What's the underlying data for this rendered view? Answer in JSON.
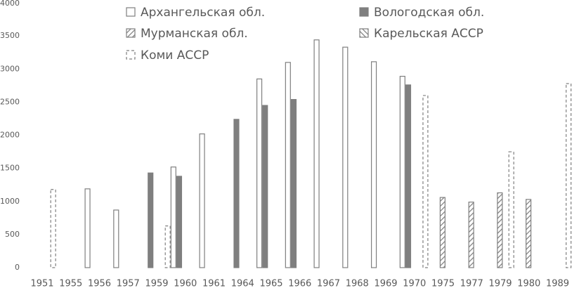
{
  "chart_data": {
    "type": "bar",
    "categories": [
      "1951",
      "1955",
      "1956",
      "1957",
      "1959",
      "1960",
      "1961",
      "1964",
      "1965",
      "1966",
      "1967",
      "1968",
      "1969",
      "1970",
      "1975",
      "1977",
      "1979",
      "1980",
      "1989"
    ],
    "series": [
      {
        "name": "Архангельская обл.",
        "color": "#7f7f7f",
        "style": "outline",
        "values": [
          null,
          null,
          1190,
          870,
          null,
          1520,
          2020,
          null,
          2850,
          3100,
          3440,
          3330,
          3110,
          2890,
          null,
          null,
          null,
          null,
          null
        ]
      },
      {
        "name": "Вологодская обл.",
        "color": "#7f7f7f",
        "style": "solid",
        "values": [
          null,
          null,
          null,
          null,
          1430,
          1380,
          null,
          2240,
          2450,
          2540,
          null,
          null,
          null,
          2760,
          null,
          null,
          null,
          null,
          null
        ]
      },
      {
        "name": "Мурманская обл.",
        "color": "#7f7f7f",
        "style": "hatch-back",
        "values": [
          null,
          null,
          null,
          null,
          null,
          null,
          null,
          null,
          null,
          null,
          null,
          null,
          null,
          null,
          1060,
          990,
          1130,
          1030,
          null
        ]
      },
      {
        "name": "Карельская АССР",
        "color": "#7f7f7f",
        "style": "hatch-forward",
        "values": [
          null,
          null,
          null,
          null,
          null,
          null,
          null,
          null,
          null,
          null,
          null,
          null,
          null,
          null,
          null,
          null,
          null,
          null,
          null
        ]
      },
      {
        "name": "Коми АССР",
        "color": "#7f7f7f",
        "style": "dashed",
        "values": [
          1180,
          null,
          null,
          null,
          630,
          null,
          null,
          null,
          null,
          null,
          null,
          null,
          null,
          2600,
          null,
          null,
          1750,
          null,
          2780
        ]
      }
    ],
    "ylim": [
      0,
      4000
    ],
    "yticks": [
      0,
      500,
      1000,
      1500,
      2000,
      2500,
      3000,
      3500,
      4000
    ],
    "grid": false,
    "legend": "top"
  }
}
